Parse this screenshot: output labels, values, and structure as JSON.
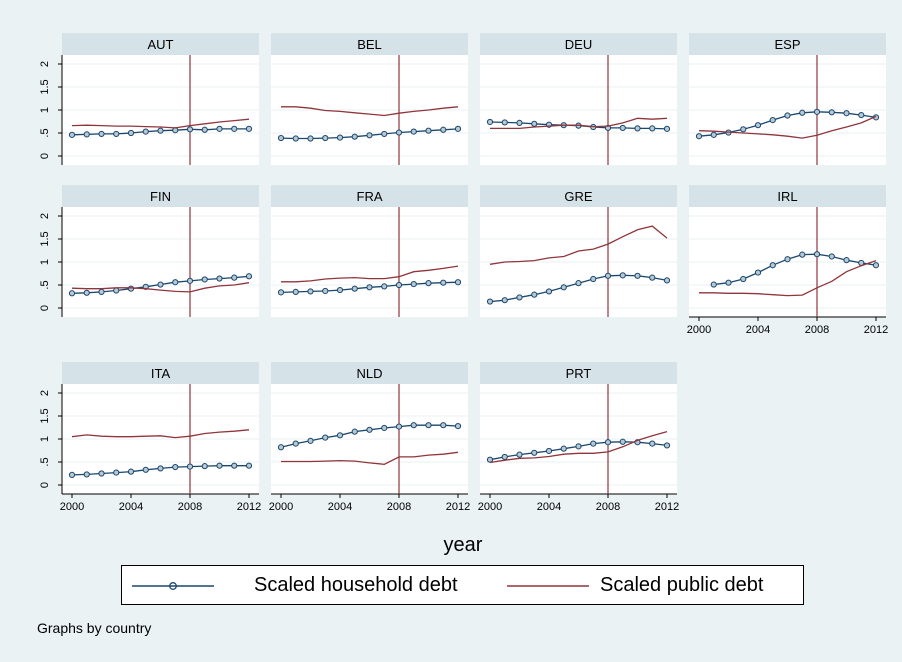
{
  "colors": {
    "background": "#eaf2f3",
    "panel_header": "#d5e2e8",
    "household": "#1a476f",
    "public": "#90353b"
  },
  "reference_line_x": 2008,
  "xlabel": "year",
  "legend": [
    "Scaled household debt",
    "Scaled public debt"
  ],
  "caption": "Graphs by country",
  "chart_data": {
    "type": "line",
    "xlabel": "year",
    "ylabel": "",
    "xlim": [
      2000,
      2012
    ],
    "ylim": [
      0,
      2
    ],
    "x": [
      2000,
      2001,
      2002,
      2003,
      2004,
      2005,
      2006,
      2007,
      2008,
      2009,
      2010,
      2011,
      2012
    ],
    "xticks": [
      2000,
      2004,
      2008,
      2012
    ],
    "yticks": [
      0,
      0.5,
      1,
      1.5,
      2
    ],
    "ytick_labels": [
      "0",
      ".5",
      "1",
      "1.5",
      "2"
    ],
    "grid": true,
    "legend_position": "bottom",
    "panels": [
      {
        "title": "AUT",
        "series": [
          {
            "name": "Scaled household debt",
            "values": [
              0.46,
              0.47,
              0.48,
              0.48,
              0.5,
              0.53,
              0.55,
              0.56,
              0.58,
              0.57,
              0.59,
              0.59,
              0.59
            ]
          },
          {
            "name": "Scaled public debt",
            "values": [
              0.66,
              0.67,
              0.66,
              0.65,
              0.65,
              0.64,
              0.63,
              0.61,
              0.66,
              0.7,
              0.74,
              0.77,
              0.8
            ]
          }
        ]
      },
      {
        "title": "BEL",
        "series": [
          {
            "name": "Scaled household debt",
            "values": [
              0.39,
              0.38,
              0.38,
              0.39,
              0.4,
              0.42,
              0.45,
              0.48,
              0.51,
              0.53,
              0.55,
              0.57,
              0.59
            ]
          },
          {
            "name": "Scaled public debt",
            "values": [
              1.07,
              1.07,
              1.04,
              0.99,
              0.97,
              0.94,
              0.91,
              0.88,
              0.93,
              0.97,
              1.0,
              1.04,
              1.07
            ]
          }
        ]
      },
      {
        "title": "DEU",
        "series": [
          {
            "name": "Scaled household debt",
            "values": [
              0.74,
              0.73,
              0.72,
              0.7,
              0.68,
              0.67,
              0.66,
              0.63,
              0.61,
              0.61,
              0.6,
              0.6,
              0.59
            ]
          },
          {
            "name": "Scaled public debt",
            "values": [
              0.6,
              0.6,
              0.6,
              0.63,
              0.65,
              0.67,
              0.67,
              0.64,
              0.65,
              0.72,
              0.82,
              0.8,
              0.82
            ]
          }
        ]
      },
      {
        "title": "ESP",
        "series": [
          {
            "name": "Scaled household debt",
            "values": [
              0.43,
              0.46,
              0.51,
              0.58,
              0.67,
              0.78,
              0.88,
              0.94,
              0.96,
              0.95,
              0.93,
              0.89,
              0.84
            ]
          },
          {
            "name": "Scaled public debt",
            "values": [
              0.55,
              0.54,
              0.52,
              0.5,
              0.48,
              0.46,
              0.43,
              0.39,
              0.45,
              0.55,
              0.63,
              0.72,
              0.86
            ]
          }
        ]
      },
      {
        "title": "FIN",
        "series": [
          {
            "name": "Scaled household debt",
            "values": [
              0.32,
              0.33,
              0.35,
              0.38,
              0.42,
              0.46,
              0.51,
              0.56,
              0.59,
              0.62,
              0.64,
              0.66,
              0.69
            ]
          },
          {
            "name": "Scaled public debt",
            "values": [
              0.43,
              0.42,
              0.42,
              0.44,
              0.44,
              0.42,
              0.39,
              0.36,
              0.35,
              0.43,
              0.48,
              0.5,
              0.55
            ]
          }
        ]
      },
      {
        "title": "FRA",
        "series": [
          {
            "name": "Scaled household debt",
            "values": [
              0.34,
              0.35,
              0.36,
              0.37,
              0.39,
              0.42,
              0.45,
              0.47,
              0.5,
              0.52,
              0.54,
              0.55,
              0.56
            ]
          },
          {
            "name": "Scaled public debt",
            "values": [
              0.57,
              0.57,
              0.59,
              0.63,
              0.65,
              0.66,
              0.64,
              0.64,
              0.68,
              0.79,
              0.82,
              0.86,
              0.91
            ]
          }
        ]
      },
      {
        "title": "GRE",
        "series": [
          {
            "name": "Scaled household debt",
            "values": [
              0.14,
              0.17,
              0.23,
              0.29,
              0.36,
              0.45,
              0.54,
              0.63,
              0.7,
              0.71,
              0.7,
              0.66,
              0.6
            ]
          },
          {
            "name": "Scaled public debt",
            "values": [
              0.95,
              1.0,
              1.01,
              1.03,
              1.09,
              1.12,
              1.24,
              1.28,
              1.39,
              1.55,
              1.7,
              1.78,
              1.52
            ]
          }
        ]
      },
      {
        "title": "IRL",
        "series": [
          {
            "name": "Scaled household debt",
            "values": [
              null,
              0.51,
              0.55,
              0.63,
              0.77,
              0.93,
              1.06,
              1.16,
              1.17,
              1.12,
              1.04,
              0.98,
              0.93
            ]
          },
          {
            "name": "Scaled public debt",
            "values": [
              0.33,
              0.33,
              0.32,
              0.32,
              0.31,
              0.29,
              0.27,
              0.28,
              0.44,
              0.58,
              0.79,
              0.92,
              1.03
            ]
          }
        ]
      },
      {
        "title": "ITA",
        "series": [
          {
            "name": "Scaled household debt",
            "values": [
              0.22,
              0.23,
              0.25,
              0.27,
              0.29,
              0.33,
              0.36,
              0.39,
              0.4,
              0.41,
              0.42,
              0.42,
              0.42
            ]
          },
          {
            "name": "Scaled public debt",
            "values": [
              1.05,
              1.09,
              1.06,
              1.05,
              1.05,
              1.06,
              1.07,
              1.03,
              1.06,
              1.12,
              1.15,
              1.17,
              1.2
            ]
          }
        ]
      },
      {
        "title": "NLD",
        "series": [
          {
            "name": "Scaled household debt",
            "values": [
              0.82,
              0.9,
              0.96,
              1.03,
              1.08,
              1.16,
              1.2,
              1.24,
              1.27,
              1.3,
              1.3,
              1.3,
              1.28
            ]
          },
          {
            "name": "Scaled public debt",
            "values": [
              0.51,
              0.51,
              0.51,
              0.52,
              0.53,
              0.52,
              0.48,
              0.45,
              0.61,
              0.61,
              0.65,
              0.67,
              0.71
            ]
          }
        ]
      },
      {
        "title": "PRT",
        "series": [
          {
            "name": "Scaled household debt",
            "values": [
              0.55,
              0.61,
              0.66,
              0.7,
              0.74,
              0.79,
              0.84,
              0.9,
              0.93,
              0.94,
              0.93,
              0.9,
              0.86
            ]
          },
          {
            "name": "Scaled public debt",
            "values": [
              0.49,
              0.54,
              0.58,
              0.59,
              0.62,
              0.67,
              0.69,
              0.69,
              0.72,
              0.83,
              0.97,
              1.07,
              1.16
            ]
          }
        ]
      }
    ]
  }
}
